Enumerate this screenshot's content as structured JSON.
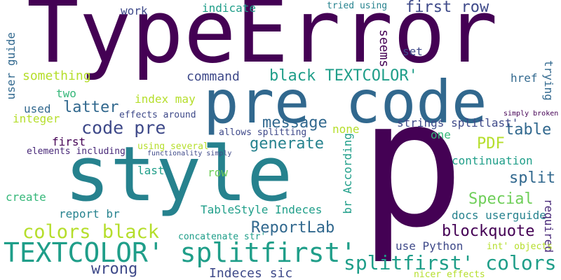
{
  "words": [
    {
      "id": "typeerror",
      "text": "TypeError",
      "color": "#440154"
    },
    {
      "id": "pre-code",
      "text": "pre code",
      "color": "#31688e"
    },
    {
      "id": "style",
      "text": "style",
      "color": "#26828e"
    },
    {
      "id": "p",
      "text": "p",
      "color": "#440154"
    },
    {
      "id": "textcolor-splitfirst",
      "text": "TEXTCOLOR' splitfirst'",
      "color": "#1f9e89"
    },
    {
      "id": "colors-black",
      "text": "colors black",
      "color": "#b5de2b"
    },
    {
      "id": "splitfirst-colors",
      "text": "splitfirst' colors",
      "color": "#1f9e89"
    },
    {
      "id": "code-pre",
      "text": "code pre",
      "color": "#3e4989"
    },
    {
      "id": "black-textcolor",
      "text": "black TEXTCOLOR'",
      "color": "#1f9e89"
    },
    {
      "id": "first-row",
      "text": "first row",
      "color": "#3e4989"
    },
    {
      "id": "message",
      "text": "message",
      "color": "#31688e"
    },
    {
      "id": "generate",
      "text": "generate",
      "color": "#26828e"
    },
    {
      "id": "table",
      "text": "table",
      "color": "#31688e"
    },
    {
      "id": "pdf",
      "text": "PDF",
      "color": "#b5de2b"
    },
    {
      "id": "special",
      "text": "Special",
      "color": "#6ece58"
    },
    {
      "id": "split",
      "text": "split",
      "color": "#31688e"
    },
    {
      "id": "reportlab",
      "text": "ReportLab",
      "color": "#31688e"
    },
    {
      "id": "blockquote",
      "text": "blockquote",
      "color": "#440154"
    },
    {
      "id": "wrong",
      "text": "wrong",
      "color": "#3e4989"
    },
    {
      "id": "indeces-sic",
      "text": "Indeces sic",
      "color": "#3e4989"
    },
    {
      "id": "latter",
      "text": "latter",
      "color": "#31688e"
    },
    {
      "id": "command",
      "text": "command",
      "color": "#3e4989"
    },
    {
      "id": "something",
      "text": "something",
      "color": "#b5de2b"
    },
    {
      "id": "work",
      "text": "work",
      "color": "#3e4989"
    },
    {
      "id": "indicate",
      "text": "indicate",
      "color": "#1f9e89"
    },
    {
      "id": "tried-using",
      "text": "tried using",
      "color": "#26828e"
    },
    {
      "id": "seems",
      "text": "seems",
      "color": "#440154"
    },
    {
      "id": "set",
      "text": "set",
      "color": "#3e4989"
    },
    {
      "id": "href",
      "text": "href",
      "color": "#31688e"
    },
    {
      "id": "trying",
      "text": "trying",
      "color": "#31688e"
    },
    {
      "id": "user-guide",
      "text": "user guide",
      "color": "#31688e"
    },
    {
      "id": "two",
      "text": "two",
      "color": "#35b779"
    },
    {
      "id": "used",
      "text": "used",
      "color": "#31688e"
    },
    {
      "id": "integer",
      "text": "integer",
      "color": "#b5de2b"
    },
    {
      "id": "index-may",
      "text": "index may",
      "color": "#b5de2b"
    },
    {
      "id": "effects-around",
      "text": "effects around",
      "color": "#3e4989"
    },
    {
      "id": "simply-broken",
      "text": "simply broken",
      "color": "#440154"
    },
    {
      "id": "first",
      "text": "first",
      "color": "#440154"
    },
    {
      "id": "elements-including",
      "text": "elements including",
      "color": "#482878"
    },
    {
      "id": "using-several",
      "text": "using several",
      "color": "#b5de2b"
    },
    {
      "id": "functionality-simply",
      "text": "functionality simply",
      "color": "#3e4989"
    },
    {
      "id": "allows-splitting",
      "text": "allows splitting",
      "color": "#3e4989"
    },
    {
      "id": "none",
      "text": "none",
      "color": "#b5de2b"
    },
    {
      "id": "strings-splitlast",
      "text": "strings splitlast'",
      "color": "#3e4989"
    },
    {
      "id": "one",
      "text": "one",
      "color": "#35b779"
    },
    {
      "id": "last",
      "text": "last",
      "color": "#1f9e89"
    },
    {
      "id": "row",
      "text": "row",
      "color": "#6ece58"
    },
    {
      "id": "br-according",
      "text": "br According",
      "color": "#1f9e89"
    },
    {
      "id": "continuation",
      "text": "continuation",
      "color": "#1f9e89"
    },
    {
      "id": "create",
      "text": "create",
      "color": "#35b779"
    },
    {
      "id": "report-br",
      "text": "report br",
      "color": "#26828e"
    },
    {
      "id": "tablestyle-indeces",
      "text": "TableStyle Indeces",
      "color": "#1f9e89"
    },
    {
      "id": "docs-userguide",
      "text": "docs userguide",
      "color": "#26828e"
    },
    {
      "id": "required",
      "text": "required",
      "color": "#482878"
    },
    {
      "id": "concatenate-str",
      "text": "concatenate str'",
      "color": "#1f9e89"
    },
    {
      "id": "use-python",
      "text": "use Python",
      "color": "#3e4989"
    },
    {
      "id": "int-objects",
      "text": "int' objects",
      "color": "#b5de2b"
    },
    {
      "id": "nicer-effects",
      "text": "nicer effects",
      "color": "#b5de2b"
    }
  ]
}
